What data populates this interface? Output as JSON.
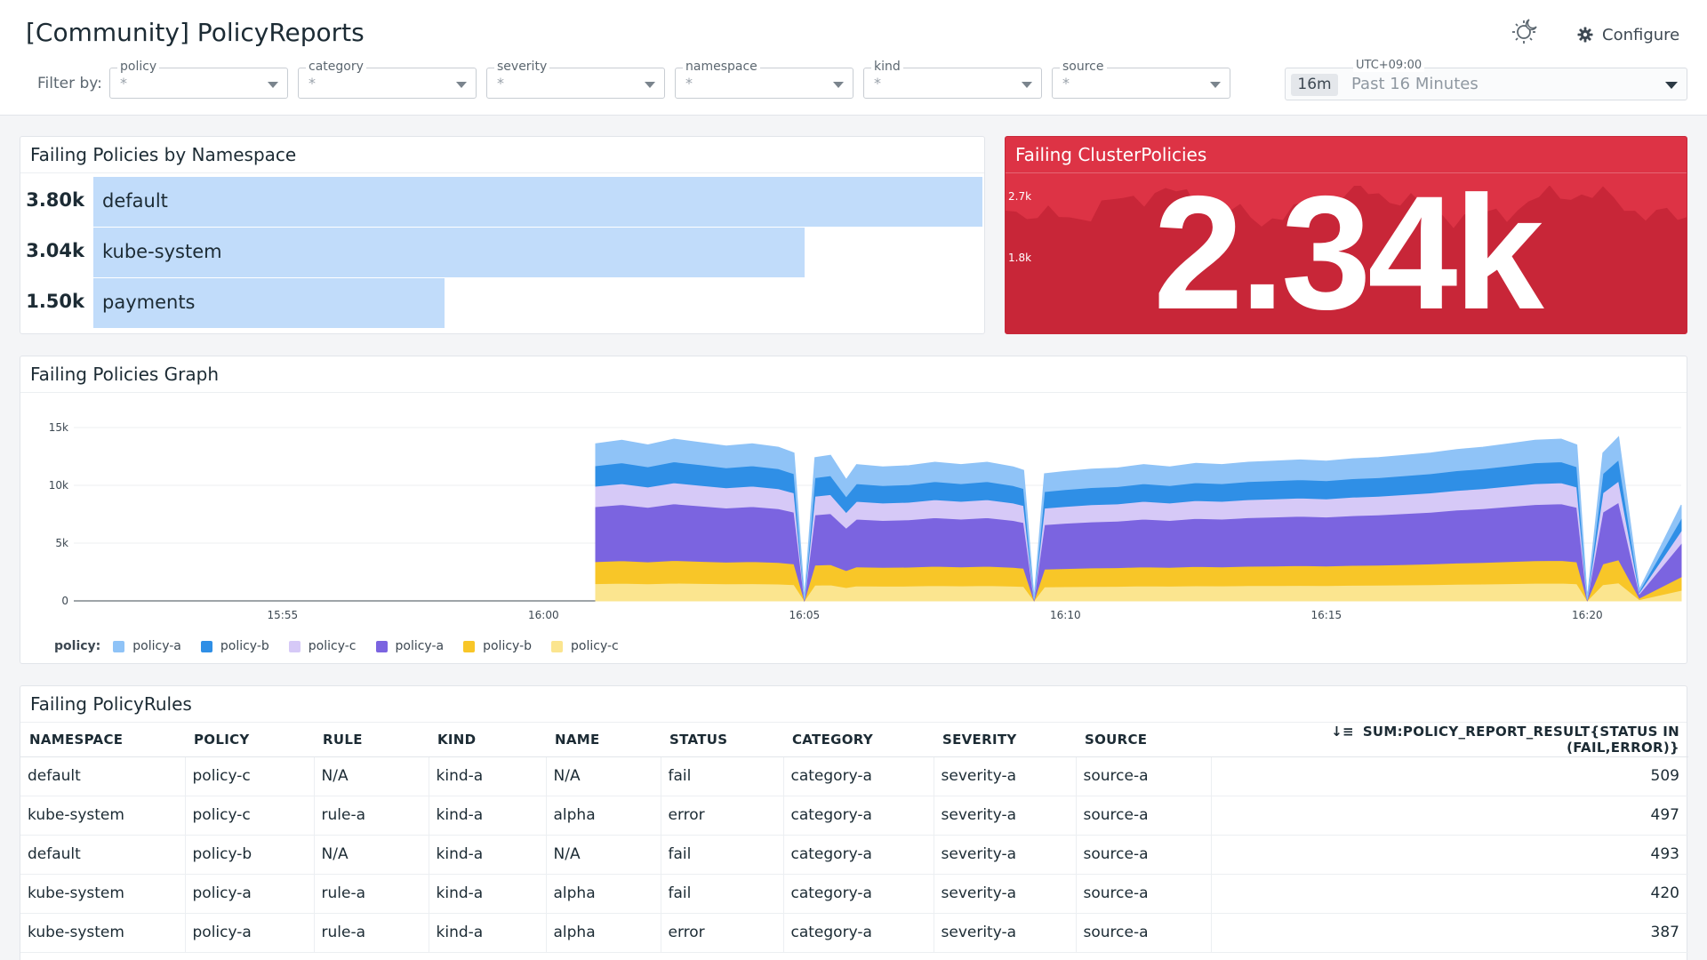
{
  "header": {
    "title": "[Community] PolicyReports",
    "configure_label": "Configure",
    "filter_label": "Filter by:",
    "filters": [
      {
        "label": "policy",
        "value": "*"
      },
      {
        "label": "category",
        "value": "*"
      },
      {
        "label": "severity",
        "value": "*"
      },
      {
        "label": "namespace",
        "value": "*"
      },
      {
        "label": "kind",
        "value": "*"
      },
      {
        "label": "source",
        "value": "*"
      }
    ],
    "time": {
      "timezone": "UTC+09:00",
      "chip": "16m",
      "range": "Past 16 Minutes"
    }
  },
  "toplist": {
    "title": "Failing Policies by Namespace",
    "rows": [
      {
        "label": "default",
        "value_text": "3.80k",
        "value": 3800
      },
      {
        "label": "kube-system",
        "value_text": "3.04k",
        "value": 3040
      },
      {
        "label": "payments",
        "value_text": "1.50k",
        "value": 1500
      }
    ]
  },
  "query_value": {
    "title": "Failing ClusterPolicies",
    "value": "2.34k",
    "y_labels": [
      "2.7k",
      "1.8k"
    ],
    "background_color": "#dd3345"
  },
  "graph": {
    "title": "Failing Policies Graph",
    "legend_title": "policy:",
    "legend": [
      {
        "name": "policy-a",
        "color": "#8fc3f7"
      },
      {
        "name": "policy-b",
        "color": "#2f8fe6"
      },
      {
        "name": "policy-c",
        "color": "#d6c9f7"
      },
      {
        "name": "policy-a",
        "color": "#7b64e0"
      },
      {
        "name": "policy-b",
        "color": "#f8c628"
      },
      {
        "name": "policy-c",
        "color": "#fbe58f"
      }
    ]
  },
  "chart_data": {
    "type": "area",
    "stacked": true,
    "title": "Failing Policies Graph",
    "xlabel": "",
    "ylabel": "",
    "x_ticks": [
      "15:55",
      "16:00",
      "16:05",
      "16:10",
      "16:15",
      "16:20"
    ],
    "x_tick_minutes": [
      955,
      960,
      965,
      970,
      975,
      980
    ],
    "x_range_minutes": [
      951,
      981.8
    ],
    "ylim": [
      0,
      15000
    ],
    "y_ticks": [
      {
        "value": 0,
        "label": "0"
      },
      {
        "value": 5000,
        "label": "5k"
      },
      {
        "value": 10000,
        "label": "10k"
      },
      {
        "value": 15000,
        "label": "15k"
      }
    ],
    "data_start_minute": 961,
    "data_end_minute": 981.8,
    "total_points": [
      [
        961,
        13600
      ],
      [
        961.5,
        13900
      ],
      [
        962,
        13500
      ],
      [
        962.5,
        14000
      ],
      [
        963,
        13700
      ],
      [
        963.5,
        13400
      ],
      [
        964,
        13600
      ],
      [
        964.5,
        13300
      ],
      [
        964.8,
        12800
      ],
      [
        965,
        200
      ],
      [
        965.2,
        12400
      ],
      [
        965.5,
        12600
      ],
      [
        965.8,
        10500
      ],
      [
        966,
        11800
      ],
      [
        966.5,
        11600
      ],
      [
        967,
        11700
      ],
      [
        967.5,
        12000
      ],
      [
        968,
        11800
      ],
      [
        968.5,
        12000
      ],
      [
        969,
        11600
      ],
      [
        969.2,
        11300
      ],
      [
        969.4,
        200
      ],
      [
        969.6,
        11000
      ],
      [
        970,
        11200
      ],
      [
        970.5,
        11400
      ],
      [
        971,
        11500
      ],
      [
        971.5,
        11800
      ],
      [
        972,
        11600
      ],
      [
        972.5,
        11900
      ],
      [
        973,
        11800
      ],
      [
        973.5,
        12000
      ],
      [
        974,
        12100
      ],
      [
        974.5,
        12200
      ],
      [
        975,
        12100
      ],
      [
        975.5,
        12300
      ],
      [
        976,
        12400
      ],
      [
        976.5,
        12600
      ],
      [
        977,
        12800
      ],
      [
        977.5,
        13100
      ],
      [
        978,
        13300
      ],
      [
        978.5,
        13600
      ],
      [
        979,
        13900
      ],
      [
        979.5,
        14000
      ],
      [
        979.8,
        13500
      ],
      [
        980,
        200
      ],
      [
        980.3,
        12800
      ],
      [
        980.6,
        14200
      ],
      [
        981,
        1000
      ],
      [
        981.8,
        8300
      ]
    ],
    "series": [
      {
        "name": "policy-a",
        "color": "#8fc3f7",
        "share": 0.14
      },
      {
        "name": "policy-b",
        "color": "#2f8fe6",
        "share": 0.13
      },
      {
        "name": "policy-c",
        "color": "#d6c9f7",
        "share": 0.13
      },
      {
        "name": "policy-a",
        "color": "#7b64e0",
        "share": 0.35
      },
      {
        "name": "policy-b",
        "color": "#f8c628",
        "share": 0.14
      },
      {
        "name": "policy-c",
        "color": "#fbe58f",
        "share": 0.11
      }
    ]
  },
  "table": {
    "title": "Failing PolicyRules",
    "columns": [
      "NAMESPACE",
      "POLICY",
      "RULE",
      "KIND",
      "NAME",
      "STATUS",
      "CATEGORY",
      "SEVERITY",
      "SOURCE",
      "SUM:POLICY_REPORT_RESULT{STATUS IN (FAIL,ERROR)}"
    ],
    "rows": [
      [
        "default",
        "policy-c",
        "N/A",
        "kind-a",
        "N/A",
        "fail",
        "category-a",
        "severity-a",
        "source-a",
        "509"
      ],
      [
        "kube-system",
        "policy-c",
        "rule-a",
        "kind-a",
        "alpha",
        "error",
        "category-a",
        "severity-a",
        "source-a",
        "497"
      ],
      [
        "default",
        "policy-b",
        "N/A",
        "kind-a",
        "N/A",
        "fail",
        "category-a",
        "severity-a",
        "source-a",
        "493"
      ],
      [
        "kube-system",
        "policy-a",
        "rule-a",
        "kind-a",
        "alpha",
        "fail",
        "category-a",
        "severity-a",
        "source-a",
        "420"
      ],
      [
        "kube-system",
        "policy-a",
        "rule-a",
        "kind-a",
        "alpha",
        "error",
        "category-a",
        "severity-a",
        "source-a",
        "387"
      ]
    ]
  }
}
